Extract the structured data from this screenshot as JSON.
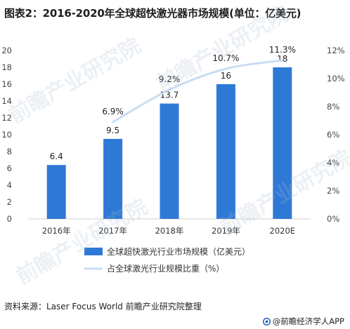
{
  "title": "图表2：2016-2020年全球超快激光器市场规模(单位：亿美元)",
  "source": "资料来源：Laser Focus World 前瞻产业研究院整理",
  "brand": "@前瞻经济学人APP",
  "watermark": "前瞻产业研究院",
  "colors": {
    "bar": "#2f79d6",
    "line": "#c9dcf5",
    "axis": "#cfcfcf"
  },
  "chart_data": {
    "type": "bar",
    "categories": [
      "2016年",
      "2017年",
      "2018年",
      "2019年",
      "2020E"
    ],
    "series": [
      {
        "name": "全球超快激光行业市场规模（亿美元）",
        "type": "bar",
        "axis": "left",
        "values": [
          6.4,
          9.5,
          13.7,
          16,
          18
        ],
        "labels": [
          "6.4",
          "9.5",
          "13.7",
          "16",
          "18"
        ]
      },
      {
        "name": "占全球激光行业规模比重（%）",
        "type": "line",
        "axis": "right",
        "values": [
          null,
          6.9,
          9.2,
          10.7,
          11.3
        ],
        "labels": [
          "",
          "6.9%",
          "9.2%",
          "10.7%",
          "11.3%"
        ]
      }
    ],
    "ylim": [
      0,
      20
    ],
    "yticks": [
      "0",
      "2",
      "4",
      "6",
      "8",
      "10",
      "12",
      "14",
      "16",
      "18",
      "20"
    ],
    "y2lim": [
      0,
      12
    ],
    "y2ticks": [
      "0%",
      "2%",
      "4%",
      "6%",
      "8%",
      "10%",
      "12%"
    ],
    "legend_position": "bottom"
  }
}
